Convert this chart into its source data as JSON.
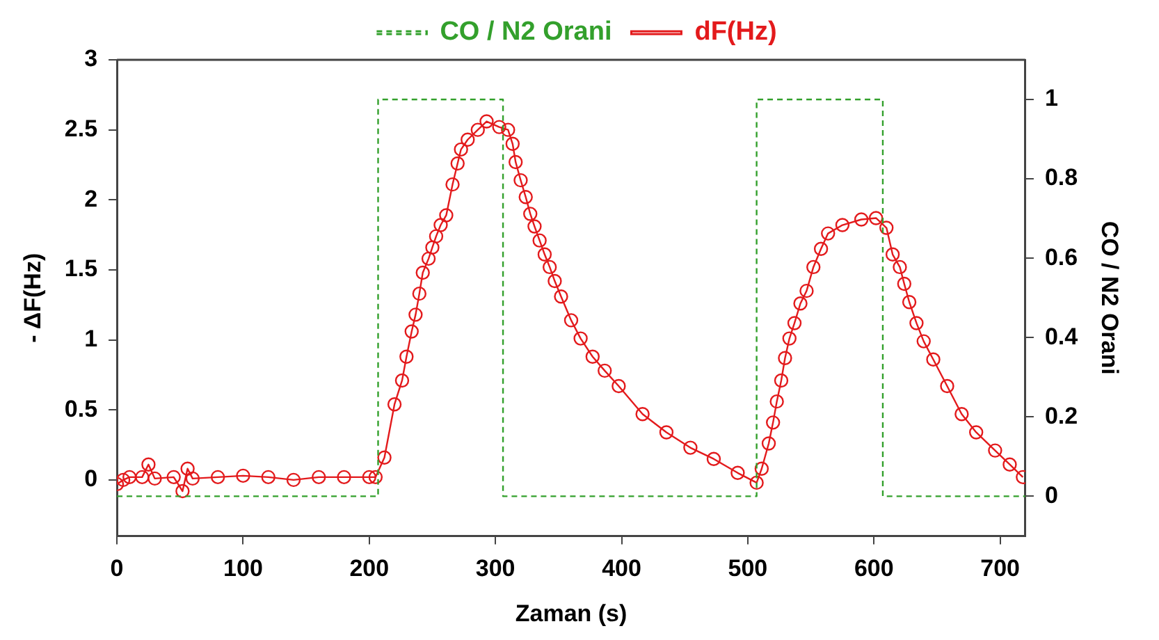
{
  "chart_data": {
    "type": "line",
    "xlabel": "Zaman (s)",
    "ylabel": "- ΔF(Hz)",
    "y2label": "CO / N2 Orani",
    "xlim": [
      0,
      720
    ],
    "xticks": [
      0,
      100,
      200,
      300,
      400,
      500,
      600,
      700
    ],
    "ylim": [
      -0.4,
      3
    ],
    "yticks": [
      0,
      0.5,
      1,
      1.5,
      2,
      2.5,
      3
    ],
    "y2lim": [
      -0.1,
      1.1
    ],
    "y2ticks": [
      0,
      0.2,
      0.4,
      0.6,
      0.8,
      1
    ],
    "grid": false,
    "legend": "top",
    "series": [
      {
        "name": "CO / N2 Orani",
        "type": "step",
        "axis": "y2",
        "color": "#33a02c",
        "line_style": "dashed",
        "marker": "none",
        "x": [
          0,
          207,
          306,
          507,
          607,
          720
        ],
        "values": [
          0,
          1,
          0,
          1,
          0,
          0
        ]
      },
      {
        "name": "dF(Hz)",
        "axis": "y",
        "color": "#e31a1c",
        "line_style": "solid",
        "marker": "circle",
        "x": [
          0,
          5,
          10,
          20,
          25,
          30,
          45,
          52,
          56,
          60,
          80,
          100,
          120,
          140,
          160,
          180,
          200,
          205,
          212,
          220,
          226,
          229.5,
          233.6,
          236.7,
          239.7,
          242.4,
          247,
          250,
          253,
          256.6,
          261,
          266,
          270,
          272.7,
          278,
          286,
          293,
          303,
          310,
          313.6,
          316,
          320,
          324,
          327.6,
          331,
          335,
          339,
          343,
          347,
          352,
          360,
          367.5,
          377,
          386.6,
          397.7,
          416.6,
          435.5,
          454.5,
          473,
          492,
          507,
          511,
          516.6,
          520,
          523,
          526.5,
          529.5,
          533,
          537,
          541.7,
          546.6,
          552,
          558,
          563.6,
          575,
          590,
          601.6,
          609.9,
          614.8,
          620.5,
          624,
          628,
          633.7,
          639.4,
          647,
          658,
          669.5,
          681,
          696,
          707.6,
          718
        ],
        "values": [
          -0.03,
          0,
          0.02,
          0.02,
          0.11,
          0.01,
          0.02,
          -0.08,
          0.08,
          0.01,
          0.02,
          0.03,
          0.02,
          0,
          0.02,
          0.02,
          0.02,
          0.02,
          0.16,
          0.54,
          0.71,
          0.88,
          1.06,
          1.18,
          1.33,
          1.48,
          1.58,
          1.66,
          1.74,
          1.82,
          1.89,
          2.11,
          2.26,
          2.36,
          2.43,
          2.5,
          2.56,
          2.52,
          2.5,
          2.4,
          2.27,
          2.14,
          2.02,
          1.9,
          1.81,
          1.71,
          1.61,
          1.52,
          1.42,
          1.31,
          1.14,
          1.01,
          0.88,
          0.78,
          0.67,
          0.47,
          0.34,
          0.23,
          0.15,
          0.05,
          -0.02,
          0.08,
          0.26,
          0.41,
          0.56,
          0.71,
          0.87,
          1.01,
          1.12,
          1.26,
          1.35,
          1.52,
          1.65,
          1.76,
          1.82,
          1.86,
          1.87,
          1.8,
          1.61,
          1.52,
          1.4,
          1.27,
          1.12,
          0.99,
          0.86,
          0.67,
          0.47,
          0.34,
          0.21,
          0.11,
          0.02
        ]
      }
    ]
  }
}
